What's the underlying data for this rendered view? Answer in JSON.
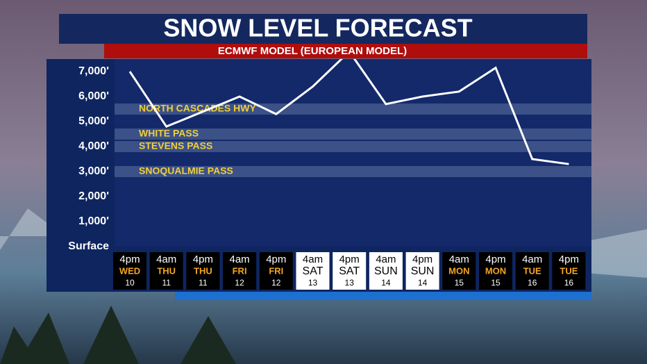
{
  "chart_data": {
    "type": "line",
    "title": "SNOW LEVEL FORECAST",
    "subtitle": "ECMWF MODEL (EUROPEAN MODEL)",
    "categories": [
      [
        "4pm",
        "WED",
        "10"
      ],
      [
        "4am",
        "THU",
        "11"
      ],
      [
        "4pm",
        "THU",
        "11"
      ],
      [
        "4am",
        "FRI",
        "12"
      ],
      [
        "4pm",
        "FRI",
        "12"
      ],
      [
        "4am",
        "SAT",
        "13"
      ],
      [
        "4pm",
        "SAT",
        "13"
      ],
      [
        "4am",
        "SUN",
        "14"
      ],
      [
        "4pm",
        "SUN",
        "14"
      ],
      [
        "4am",
        "MON",
        "15"
      ],
      [
        "4pm",
        "MON",
        "15"
      ],
      [
        "4am",
        "TUE",
        "16"
      ],
      [
        "4pm",
        "TUE",
        "16"
      ]
    ],
    "series": [
      {
        "name": "Snow level",
        "color": "#ffffff",
        "values": [
          7000,
          4800,
          5400,
          6000,
          5300,
          6400,
          7800,
          5700,
          6000,
          6200,
          7150,
          3500,
          3300
        ]
      }
    ],
    "passes": [
      {
        "name": "NORTH CASCADES HWY",
        "elevation": 5500
      },
      {
        "name": "WHITE PASS",
        "elevation": 4500
      },
      {
        "name": "STEVENS PASS",
        "elevation": 4000
      },
      {
        "name": "SNOQUALMIE PASS",
        "elevation": 3000
      }
    ],
    "ylim": [
      0,
      7500
    ],
    "yticks": [
      {
        "value": 0,
        "label": "Surface"
      },
      {
        "value": 1000,
        "label": "1,000'"
      },
      {
        "value": 2000,
        "label": "2,000'"
      },
      {
        "value": 3000,
        "label": "3,000'"
      },
      {
        "value": 4000,
        "label": "4,000'"
      },
      {
        "value": 5000,
        "label": "5,000'"
      },
      {
        "value": 6000,
        "label": "6,000'"
      },
      {
        "value": 7000,
        "label": "7,000'"
      }
    ]
  }
}
